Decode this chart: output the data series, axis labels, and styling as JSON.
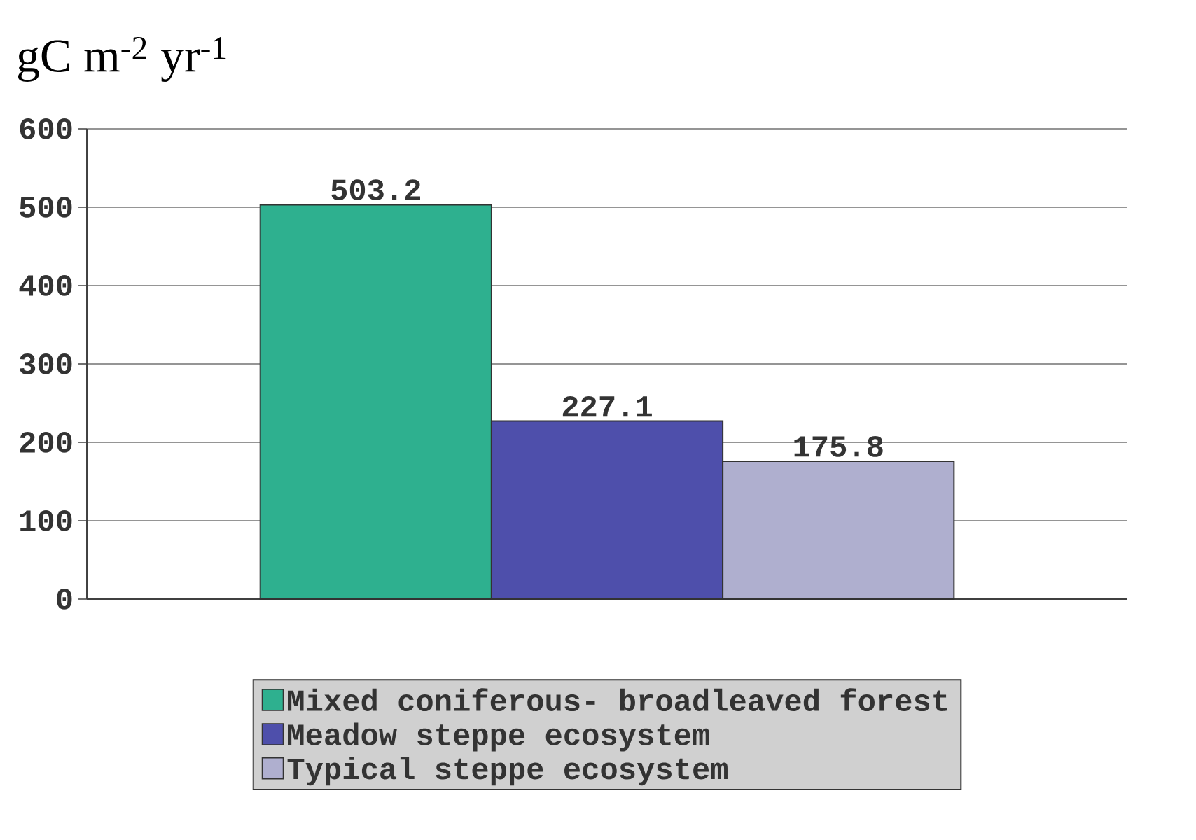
{
  "chart_data": {
    "type": "bar",
    "ylabel": "gC m$^{-2}$ yr$^{-1}$",
    "categories": [
      null
    ],
    "series": [
      {
        "name": "Mixed coniferous- broadleaved forest",
        "color": "#2eb08f",
        "values": [
          503.2
        ]
      },
      {
        "name": "Meadow steppe ecosystem",
        "color": "#4e4fab",
        "values": [
          227.1
        ]
      },
      {
        "name": "Typical steppe ecosystem",
        "color": "#afafcf",
        "values": [
          175.8
        ]
      }
    ],
    "ylim": [
      0,
      600
    ],
    "yticks": [
      0,
      100,
      200,
      300,
      400,
      500,
      600
    ],
    "grid": "y",
    "legend": "bottom",
    "data_labels": true
  }
}
